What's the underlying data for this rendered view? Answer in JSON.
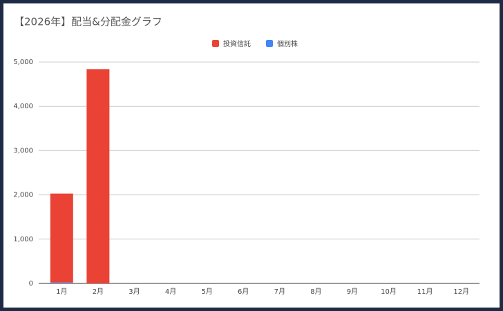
{
  "chart_data": {
    "type": "stacked-bar",
    "title": "【2026年】配当&分配金グラフ",
    "categories": [
      "1月",
      "2月",
      "3月",
      "4月",
      "5月",
      "6月",
      "7月",
      "8月",
      "9月",
      "10月",
      "11月",
      "12月"
    ],
    "series": [
      {
        "name": "投資信託",
        "color": "#ea4335",
        "values": [
          2010,
          4840,
          0,
          0,
          0,
          0,
          0,
          0,
          0,
          0,
          0,
          0
        ]
      },
      {
        "name": "個別株",
        "color": "#4285f4",
        "values": [
          20,
          0,
          0,
          0,
          0,
          0,
          0,
          0,
          0,
          0,
          0,
          0
        ]
      }
    ],
    "ylim": [
      0,
      5000
    ],
    "yticks": [
      0,
      {
        "value": 1000,
        "label": "1,000"
      },
      {
        "value": 2000,
        "label": "2,000"
      },
      {
        "value": 3000,
        "label": "3,000"
      },
      {
        "value": 4000,
        "label": "4,000"
      },
      {
        "value": 5000,
        "label": "5,000"
      }
    ],
    "grid": true
  }
}
